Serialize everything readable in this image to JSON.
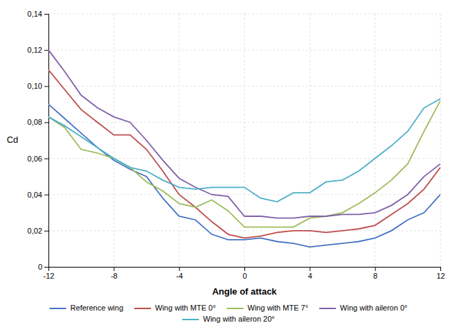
{
  "chart_data": {
    "type": "line",
    "title": "",
    "xlabel": "Angle of attack",
    "ylabel": "Cd",
    "x": [
      -12,
      -11,
      -10,
      -9,
      -8,
      -7,
      -6,
      -5,
      -4,
      -3,
      -2,
      -1,
      0,
      1,
      2,
      3,
      4,
      5,
      6,
      7,
      8,
      9,
      10,
      11,
      12
    ],
    "series": [
      {
        "name": "Reference wing",
        "color": "#4472C4",
        "values": [
          0.09,
          0.082,
          0.074,
          0.066,
          0.059,
          0.054,
          0.05,
          0.038,
          0.028,
          0.026,
          0.018,
          0.015,
          0.015,
          0.016,
          0.014,
          0.013,
          0.011,
          0.012,
          0.013,
          0.014,
          0.016,
          0.02,
          0.026,
          0.03,
          0.04
        ]
      },
      {
        "name": "Wing with MTE 0°",
        "color": "#BE4B48",
        "values": [
          0.109,
          0.098,
          0.087,
          0.08,
          0.073,
          0.073,
          0.065,
          0.053,
          0.04,
          0.033,
          0.025,
          0.018,
          0.016,
          0.017,
          0.019,
          0.02,
          0.02,
          0.019,
          0.02,
          0.021,
          0.023,
          0.029,
          0.035,
          0.043,
          0.055
        ]
      },
      {
        "name": "Wing with MTE 7°",
        "color": "#9BBB59",
        "values": [
          0.083,
          0.077,
          0.065,
          0.063,
          0.06,
          0.055,
          0.047,
          0.042,
          0.035,
          0.033,
          0.037,
          0.031,
          0.022,
          0.022,
          0.022,
          0.022,
          0.027,
          0.028,
          0.03,
          0.035,
          0.041,
          0.048,
          0.057,
          0.075,
          0.092
        ]
      },
      {
        "name": "Wing with aileron 0°",
        "color": "#7F5FA8",
        "values": [
          0.12,
          0.108,
          0.095,
          0.088,
          0.083,
          0.08,
          0.07,
          0.059,
          0.049,
          0.044,
          0.04,
          0.039,
          0.028,
          0.028,
          0.027,
          0.027,
          0.028,
          0.028,
          0.029,
          0.029,
          0.03,
          0.034,
          0.04,
          0.05,
          0.057
        ]
      },
      {
        "name": "Wing with aileron 20°",
        "color": "#4AAEC9",
        "values": [
          0.083,
          0.078,
          0.072,
          0.066,
          0.06,
          0.055,
          0.053,
          0.048,
          0.044,
          0.043,
          0.044,
          0.044,
          0.044,
          0.038,
          0.036,
          0.041,
          0.041,
          0.047,
          0.048,
          0.053,
          0.06,
          0.067,
          0.075,
          0.088,
          0.093
        ]
      }
    ],
    "xlim": [
      -12,
      12
    ],
    "ylim": [
      0,
      0.14
    ],
    "xticks": [
      -12,
      -8,
      -4,
      0,
      4,
      8,
      12
    ],
    "yticks": [
      0,
      {
        "value": 0.02,
        "label": "0,02"
      },
      {
        "value": 0.04,
        "label": "0,04"
      },
      {
        "value": 0.06,
        "label": "0,06"
      },
      {
        "value": 0.08,
        "label": "0,08"
      },
      {
        "value": 0.1,
        "label": "0,10"
      },
      {
        "value": 0.12,
        "label": "0,12"
      },
      {
        "value": 0.14,
        "label": "0,14"
      }
    ],
    "grid": true,
    "legend": "bottom"
  }
}
